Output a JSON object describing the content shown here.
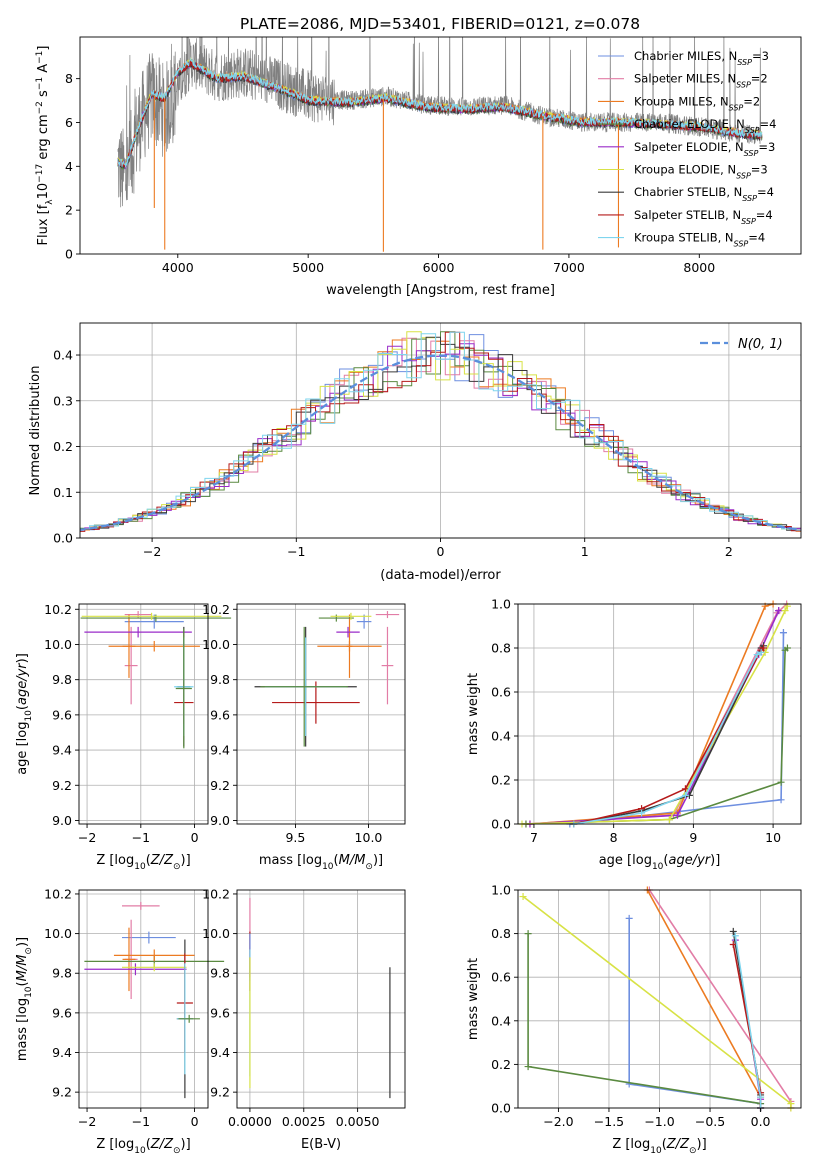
{
  "figure": {
    "title": "PLATE=2086, MJD=53401, FIBERID=0121, z=0.078"
  },
  "chart_data": [
    {
      "id": "spectrum",
      "type": "line",
      "xlabel": "wavelength [Angstrom, rest frame]",
      "ylabel": "Flux [f_λ 10^-17 erg cm^-2 s^-1 A^-1]",
      "xlim": [
        3250,
        8780
      ],
      "ylim": [
        0,
        9.9
      ],
      "xticks": [
        4000,
        5000,
        6000,
        7000,
        8000
      ],
      "yticks": [
        0,
        2,
        4,
        6,
        8
      ],
      "grid": false,
      "legend_position": "upper-right",
      "data_color": "#808080",
      "data_anchors": {
        "x": [
          3540,
          3600,
          3700,
          3800,
          3900,
          4000,
          4100,
          4300,
          4500,
          4800,
          5000,
          5300,
          5600,
          5900,
          6200,
          6500,
          6800,
          7100,
          7400,
          7700,
          8000,
          8300,
          8480
        ],
        "y": [
          4.1,
          3.4,
          5.8,
          7.2,
          6.5,
          7.6,
          8.8,
          8.1,
          8.3,
          7.7,
          7.2,
          7.0,
          7.2,
          6.8,
          6.7,
          6.8,
          6.3,
          6.0,
          6.0,
          6.0,
          5.8,
          5.5,
          5.4
        ]
      },
      "model_anchors": {
        "x": [
          3540,
          3600,
          3700,
          3800,
          3900,
          4000,
          4100,
          4300,
          4500,
          4800,
          5000,
          5300,
          5600,
          5900,
          6200,
          6500,
          6800,
          7100,
          7400,
          7700,
          8000,
          8300,
          8480
        ],
        "y": [
          4.2,
          4.0,
          5.8,
          7.3,
          7.1,
          8.3,
          8.7,
          8.0,
          8.1,
          7.5,
          7.0,
          6.9,
          7.1,
          6.7,
          6.6,
          6.7,
          6.3,
          6.0,
          6.0,
          5.9,
          5.8,
          5.5,
          5.4
        ]
      },
      "spikes": [
        {
          "x": 3900,
          "y": 0.2
        },
        {
          "x": 5577,
          "y": 0.1
        },
        {
          "x": 6800,
          "y": 0.2
        },
        {
          "x": 7380,
          "y": 0.3
        },
        {
          "x": 3820,
          "y": 2.1
        }
      ],
      "series": [
        {
          "name": "Chabrier MILES, N",
          "sub": "SSP",
          "n": "=3",
          "color": "#6e8fe0"
        },
        {
          "name": "Salpeter MILES, N",
          "sub": "SSP",
          "n": "=2",
          "color": "#e27da6"
        },
        {
          "name": "Kroupa MILES, N",
          "sub": "SSP",
          "n": "=2",
          "color": "#ec7b22"
        },
        {
          "name": "Chabrier ELODIE, N",
          "sub": "SSP",
          "n": "=4",
          "color": "#5a8a40"
        },
        {
          "name": "Salpeter ELODIE, N",
          "sub": "SSP",
          "n": "=3",
          "color": "#9a2bc9"
        },
        {
          "name": "Kroupa ELODIE, N",
          "sub": "SSP",
          "n": "=3",
          "color": "#d8e246"
        },
        {
          "name": "Chabrier STELIB, N",
          "sub": "SSP",
          "n": "=4",
          "color": "#3a3a3a"
        },
        {
          "name": "Salpeter STELIB, N",
          "sub": "SSP",
          "n": "=4",
          "color": "#b51b1b"
        },
        {
          "name": "Kroupa STELIB, N",
          "sub": "SSP",
          "n": "=4",
          "color": "#7fd5ee"
        }
      ]
    },
    {
      "id": "residuals",
      "type": "histogram",
      "xlabel": "(data-model)/error",
      "ylabel": "Normed distribution",
      "xlim": [
        -2.5,
        2.5
      ],
      "ylim": [
        0,
        0.47
      ],
      "xticks": [
        -2,
        -1,
        0,
        1,
        2
      ],
      "yticks": [
        0.0,
        0.1,
        0.2,
        0.3,
        0.4
      ],
      "grid": true,
      "legend_position": "upper-right",
      "gaussian_label": "N(0, 1)",
      "gaussian_color": "#5b8fdc",
      "bin_width": 0.1
    },
    {
      "id": "age_vs_Z",
      "type": "errorbar",
      "xlabel": "Z [log10(Z/Z_sun)]",
      "ylabel": "age [log10(age/yr)]",
      "xlim": [
        -2.15,
        0.25
      ],
      "ylim": [
        8.98,
        10.23
      ],
      "xticks": [
        -2,
        -1,
        0
      ],
      "yticks": [
        9.0,
        9.2,
        9.4,
        9.6,
        9.8,
        10.0,
        10.2
      ],
      "points": [
        {
          "x": -0.75,
          "xerr": 0.55,
          "y": 10.13,
          "yerr": 0.04,
          "color": "#6e8fe0"
        },
        {
          "x": -1.05,
          "xerr": 0.25,
          "y": 10.17,
          "yerr": 0.02,
          "color": "#e27da6"
        },
        {
          "x": -1.18,
          "xerr": 0.12,
          "y": 9.88,
          "yerr": 0.22,
          "color": "#e27da6"
        },
        {
          "x": -1.22,
          "xerr": 0.12,
          "y": 9.99,
          "yerr": 0.18,
          "color": "#ec7b22"
        },
        {
          "x": -0.72,
          "xerr": 1.4,
          "y": 10.15,
          "yerr": 0.02,
          "color": "#5a8a40"
        },
        {
          "x": -1.05,
          "xerr": 1.0,
          "y": 10.07,
          "yerr": 0.03,
          "color": "#9a2bc9"
        },
        {
          "x": -0.8,
          "xerr": 1.3,
          "y": 10.16,
          "yerr": 0.02,
          "color": "#d8e246"
        },
        {
          "x": -0.75,
          "xerr": 0.85,
          "y": 9.99,
          "yerr": 0.03,
          "color": "#ec7b22"
        },
        {
          "x": -0.2,
          "xerr": 0.12,
          "y": 9.76,
          "yerr": 0.34,
          "color": "#3a3a3a"
        },
        {
          "x": -0.2,
          "xerr": 0.18,
          "y": 9.67,
          "yerr": 0.12,
          "color": "#b51b1b"
        },
        {
          "x": -0.2,
          "xerr": 0.18,
          "y": 9.76,
          "yerr": 0.28,
          "color": "#7fd5ee"
        },
        {
          "x": -0.2,
          "xerr": 0.15,
          "y": 9.75,
          "yerr": 0.34,
          "color": "#5a8a40"
        }
      ]
    },
    {
      "id": "age_vs_mass",
      "type": "errorbar",
      "xlabel": "mass [log10(M/M_sun)]",
      "ylabel": "",
      "xlim": [
        9.1,
        10.25
      ],
      "ylim": [
        8.98,
        10.23
      ],
      "xticks": [
        9.5,
        10.0
      ],
      "yticks": [
        9.0,
        9.2,
        9.4,
        9.6,
        9.8,
        10.0,
        10.2
      ],
      "points": [
        {
          "x": 9.97,
          "xerr": 0.05,
          "y": 10.13,
          "yerr": 0.04,
          "color": "#6e8fe0"
        },
        {
          "x": 10.13,
          "xerr": 0.08,
          "y": 10.17,
          "yerr": 0.02,
          "color": "#e27da6"
        },
        {
          "x": 10.13,
          "xerr": 0.04,
          "y": 9.88,
          "yerr": 0.22,
          "color": "#e27da6"
        },
        {
          "x": 9.87,
          "xerr": 0.02,
          "y": 9.99,
          "yerr": 0.18,
          "color": "#ec7b22"
        },
        {
          "x": 9.78,
          "xerr": 0.12,
          "y": 10.15,
          "yerr": 0.02,
          "color": "#5a8a40"
        },
        {
          "x": 9.86,
          "xerr": 0.08,
          "y": 10.07,
          "yerr": 0.03,
          "color": "#9a2bc9"
        },
        {
          "x": 9.88,
          "xerr": 0.14,
          "y": 10.16,
          "yerr": 0.02,
          "color": "#d8e246"
        },
        {
          "x": 9.87,
          "xerr": 0.22,
          "y": 9.99,
          "yerr": 0.03,
          "color": "#ec7b22"
        },
        {
          "x": 9.57,
          "xerr": 0.35,
          "y": 9.76,
          "yerr": 0.34,
          "color": "#3a3a3a"
        },
        {
          "x": 9.64,
          "xerr": 0.3,
          "y": 9.67,
          "yerr": 0.12,
          "color": "#b51b1b"
        },
        {
          "x": 9.57,
          "xerr": 0.28,
          "y": 9.76,
          "yerr": 0.28,
          "color": "#7fd5ee"
        },
        {
          "x": 9.56,
          "xerr": 0.3,
          "y": 9.76,
          "yerr": 0.34,
          "color": "#5a8a40"
        }
      ]
    },
    {
      "id": "cumulative_age",
      "type": "line",
      "xlabel": "age [log10(age/yr)]",
      "ylabel": "mass weight",
      "xlim": [
        6.8,
        10.35
      ],
      "ylim": [
        0,
        1
      ],
      "xticks": [
        7,
        8,
        9,
        10
      ],
      "yticks": [
        0.0,
        0.2,
        0.4,
        0.6,
        0.8,
        1.0
      ],
      "grid": true,
      "series": [
        {
          "color": "#6e8fe0",
          "x": [
            7.45,
            10.1,
            10.13,
            10.13
          ],
          "y": [
            0.0,
            0.11,
            0.87,
            0.87
          ]
        },
        {
          "color": "#e27da6",
          "x": [
            6.9,
            8.75,
            10.05,
            10.17
          ],
          "y": [
            0.0,
            0.04,
            0.96,
            1.0
          ]
        },
        {
          "color": "#ec7b22",
          "x": [
            6.95,
            8.8,
            9.9,
            10.0
          ],
          "y": [
            0.0,
            0.05,
            0.99,
            1.0
          ]
        },
        {
          "color": "#5a8a40",
          "x": [
            6.9,
            8.7,
            10.1,
            10.15,
            10.18
          ],
          "y": [
            0.0,
            0.02,
            0.19,
            0.79,
            0.8
          ]
        },
        {
          "color": "#9a2bc9",
          "x": [
            6.95,
            8.8,
            9.82,
            10.07,
            10.07
          ],
          "y": [
            0.0,
            0.04,
            0.77,
            0.97,
            0.97
          ]
        },
        {
          "color": "#d8e246",
          "x": [
            6.85,
            8.7,
            9.9,
            10.15,
            10.18
          ],
          "y": [
            0.0,
            0.02,
            0.78,
            0.97,
            0.99
          ]
        },
        {
          "color": "#3a3a3a",
          "x": [
            7.5,
            8.35,
            8.95,
            9.85,
            9.88
          ],
          "y": [
            0.0,
            0.06,
            0.13,
            0.8,
            0.81
          ]
        },
        {
          "color": "#b51b1b",
          "x": [
            7.5,
            8.35,
            8.9,
            9.85,
            9.88
          ],
          "y": [
            0.0,
            0.07,
            0.16,
            0.79,
            0.8
          ]
        },
        {
          "color": "#7fd5ee",
          "x": [
            7.5,
            8.35,
            8.9,
            9.8,
            9.85
          ],
          "y": [
            0.0,
            0.05,
            0.13,
            0.77,
            0.78
          ]
        }
      ]
    },
    {
      "id": "mass_vs_Z",
      "type": "errorbar",
      "xlabel": "Z [log10(Z/Z_sun)]",
      "ylabel": "mass [log10(M/M_sun)]",
      "xlim": [
        -2.15,
        0.25
      ],
      "ylim": [
        9.12,
        10.22
      ],
      "xticks": [
        -2,
        -1,
        0
      ],
      "yticks": [
        9.2,
        9.4,
        9.6,
        9.8,
        10.0,
        10.2
      ],
      "points": [
        {
          "x": -0.85,
          "xerr": 0.5,
          "y": 9.98,
          "yerr": 0.03,
          "color": "#6e8fe0"
        },
        {
          "x": -1.0,
          "xerr": 0.35,
          "y": 10.14,
          "yerr": 0.02,
          "color": "#e27da6"
        },
        {
          "x": -1.18,
          "xerr": 0.12,
          "y": 9.87,
          "yerr": 0.2,
          "color": "#e27da6"
        },
        {
          "x": -1.22,
          "xerr": 0.12,
          "y": 9.87,
          "yerr": 0.16,
          "color": "#ec7b22"
        },
        {
          "x": -0.75,
          "xerr": 1.3,
          "y": 9.86,
          "yerr": 0.03,
          "color": "#5a8a40"
        },
        {
          "x": -1.1,
          "xerr": 0.95,
          "y": 9.82,
          "yerr": 0.03,
          "color": "#9a2bc9"
        },
        {
          "x": -0.75,
          "xerr": 0.6,
          "y": 9.83,
          "yerr": 0.02,
          "color": "#d8e246"
        },
        {
          "x": -0.75,
          "xerr": 0.75,
          "y": 9.89,
          "yerr": 0.03,
          "color": "#ec7b22"
        },
        {
          "x": -0.18,
          "xerr": 0.15,
          "y": 9.57,
          "yerr": 0.4,
          "color": "#3a3a3a"
        },
        {
          "x": -0.18,
          "xerr": 0.15,
          "y": 9.65,
          "yerr": 0.25,
          "color": "#b51b1b"
        },
        {
          "x": -0.18,
          "xerr": 0.15,
          "y": 9.57,
          "yerr": 0.28,
          "color": "#7fd5ee"
        },
        {
          "x": -0.1,
          "xerr": 0.2,
          "y": 9.57,
          "yerr": 0.02,
          "color": "#5a8a40"
        }
      ]
    },
    {
      "id": "mass_vs_ebv",
      "type": "errorbar",
      "xlabel": "E(B-V)",
      "ylabel": "",
      "xlim": [
        -0.0006,
        0.0072
      ],
      "ylim": [
        9.12,
        10.22
      ],
      "xticks": [
        0.0,
        0.0025,
        0.005
      ],
      "xtick_labels": [
        "0.0000",
        "0.0025",
        "0.0050"
      ],
      "yticks": [
        9.2,
        9.4,
        9.6,
        9.8,
        10.0,
        10.2
      ],
      "points": [
        {
          "x": 0.0,
          "xerr": 0.0,
          "y": 9.98,
          "yerr": 0.2,
          "color": "#e27da6"
        },
        {
          "x": 0.0,
          "xerr": 0.0,
          "y": 9.86,
          "yerr": 0.15,
          "color": "#b51b1b"
        },
        {
          "x": 0.0,
          "xerr": 0.0,
          "y": 9.88,
          "yerr": 0.12,
          "color": "#6e8fe0"
        },
        {
          "x": 0.0,
          "xerr": 0.0,
          "y": 9.6,
          "yerr": 0.32,
          "color": "#7fd5ee"
        },
        {
          "x": 0.0,
          "xerr": 0.0,
          "y": 9.55,
          "yerr": 0.33,
          "color": "#d8e246"
        },
        {
          "x": 0.0065,
          "xerr": 0.0,
          "y": 9.5,
          "yerr": 0.33,
          "color": "#3a3a3a"
        }
      ]
    },
    {
      "id": "cumulative_Z",
      "type": "line",
      "xlabel": "Z [log10(Z/Z_sun)]",
      "ylabel": "mass weight",
      "xlim": [
        -2.4,
        0.4
      ],
      "ylim": [
        0,
        1
      ],
      "xticks": [
        -2.0,
        -1.5,
        -1.0,
        -0.5,
        0.0
      ],
      "xtick_labels": [
        "−2.0",
        "−1.5",
        "−1.0",
        "−0.5",
        "0.0"
      ],
      "yticks": [
        0.0,
        0.2,
        0.4,
        0.6,
        0.8,
        1.0
      ],
      "grid": true,
      "series": [
        {
          "color": "#6e8fe0",
          "x": [
            -1.3,
            -1.3,
            0.0,
            0.0
          ],
          "y": [
            0.87,
            0.11,
            0.02,
            0.0
          ]
        },
        {
          "color": "#e27da6",
          "x": [
            -1.1,
            0.3,
            0.3
          ],
          "y": [
            1.0,
            0.03,
            0.0
          ]
        },
        {
          "color": "#ec7b22",
          "x": [
            -1.12,
            0.0,
            0.0
          ],
          "y": [
            1.0,
            0.05,
            0.0
          ]
        },
        {
          "color": "#5a8a40",
          "x": [
            -2.3,
            -2.3,
            0.0,
            0.0
          ],
          "y": [
            0.8,
            0.19,
            0.02,
            0.0
          ]
        },
        {
          "color": "#9a2bc9",
          "x": [
            -0.25,
            0.0,
            0.0
          ],
          "y": [
            0.77,
            0.04,
            0.0
          ]
        },
        {
          "color": "#d8e246",
          "x": [
            -2.35,
            0.3,
            0.3
          ],
          "y": [
            0.97,
            0.02,
            0.0
          ]
        },
        {
          "color": "#3a3a3a",
          "x": [
            -0.27,
            0.0,
            0.0
          ],
          "y": [
            0.81,
            0.06,
            0.0
          ]
        },
        {
          "color": "#b51b1b",
          "x": [
            -0.27,
            0.0,
            0.0
          ],
          "y": [
            0.75,
            0.07,
            0.0
          ]
        },
        {
          "color": "#7fd5ee",
          "x": [
            -0.25,
            0.0,
            0.0
          ],
          "y": [
            0.79,
            0.05,
            0.0
          ]
        }
      ]
    }
  ]
}
